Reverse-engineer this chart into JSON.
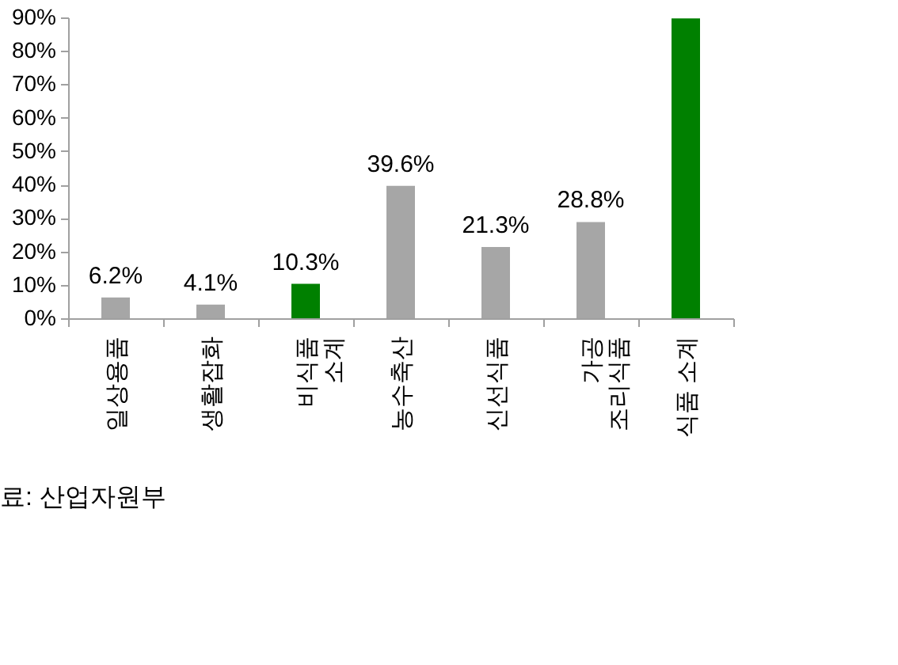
{
  "chart_data": {
    "type": "bar",
    "categories": [
      "일상용품",
      "생활잡화",
      "비식품 소계",
      "농수축산",
      "신선식품",
      "가공 조리식품",
      "식품 소계"
    ],
    "values": [
      6.2,
      4.1,
      10.3,
      39.6,
      21.3,
      28.8,
      89.7
    ],
    "colors": [
      "#a6a6a6",
      "#a6a6a6",
      "#008000",
      "#a6a6a6",
      "#a6a6a6",
      "#a6a6a6",
      "#008000"
    ],
    "value_labels": [
      "6.2%",
      "4.1%",
      "10.3%",
      "39.6%",
      "21.3%",
      "28.8%",
      null
    ],
    "ylim": [
      0,
      90
    ],
    "yticks": [
      {
        "value": 0,
        "label": "0%"
      },
      {
        "value": 10,
        "label": "10%"
      },
      {
        "value": 20,
        "label": "20%"
      },
      {
        "value": 30,
        "label": "30%"
      },
      {
        "value": 40,
        "label": "40%"
      },
      {
        "value": 50,
        "label": "50%"
      },
      {
        "value": 60,
        "label": "60%"
      },
      {
        "value": 70,
        "label": "70%"
      },
      {
        "value": 80,
        "label": "80%"
      },
      {
        "value": 90,
        "label": "90%"
      }
    ],
    "annotations": [
      "료: 산업자원부"
    ]
  }
}
